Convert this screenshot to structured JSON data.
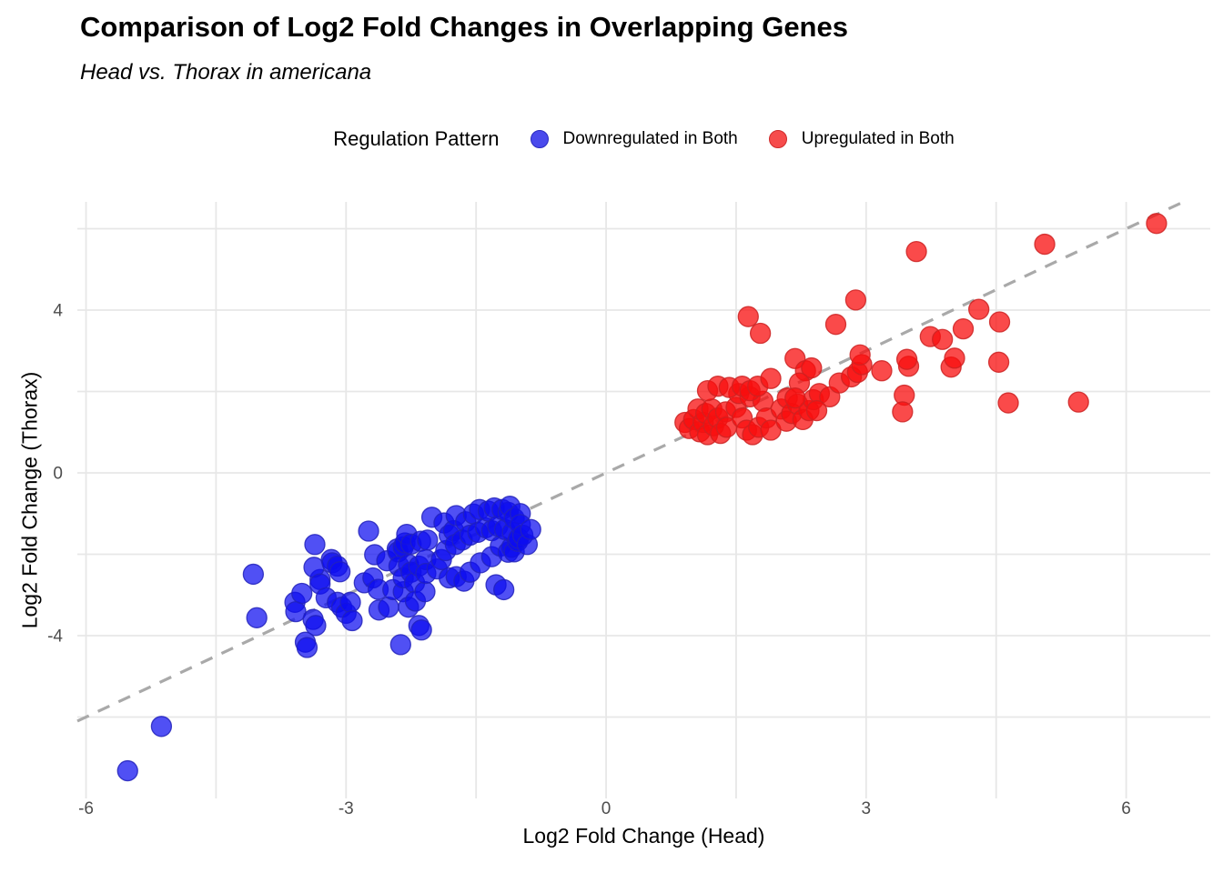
{
  "title": "Comparison of Log2 Fold Changes in Overlapping Genes",
  "subtitle": "Head vs. Thorax in americana",
  "legend": {
    "title": "Regulation Pattern",
    "items": [
      {
        "label": "Downregulated in Both",
        "color": "#4a4aec",
        "border": "#2a2ac0"
      },
      {
        "label": "Upregulated in Both",
        "color": "#f64c4c",
        "border": "#cf2b2b"
      }
    ]
  },
  "chart_data": {
    "type": "scatter",
    "title": "Comparison of Log2 Fold Changes in Overlapping Genes",
    "subtitle": "Head vs. Thorax in americana",
    "xlabel": "Log2 Fold Change (Head)",
    "ylabel": "Log2 Fold Change (Thorax)",
    "xlim": [
      -6.1,
      6.97
    ],
    "ylim": [
      -8.0,
      6.66
    ],
    "x_ticks": [
      -6,
      -3,
      0,
      3,
      6
    ],
    "y_ticks": [
      -4,
      0,
      4
    ],
    "x_minor": [
      -4.5,
      -1.5,
      1.5,
      4.5
    ],
    "y_minor": [
      -6,
      -2,
      2,
      6
    ],
    "grid": true,
    "grid_color": "#e7e7e7",
    "tick_label_color": "#4d4d4d",
    "identity_line": {
      "style": "dashed",
      "color": "#a9a9a9",
      "from": -6.1,
      "to": 6.66
    },
    "point_radius": 11,
    "legend_position": "top-center",
    "series": [
      {
        "name": "Downregulated in Both",
        "fill": "#0d0df0",
        "fill_opacity": 0.72,
        "stroke": "#2222bb",
        "points": [
          [
            -5.52,
            -7.32
          ],
          [
            -5.13,
            -6.23
          ],
          [
            -4.07,
            -2.49
          ],
          [
            -4.03,
            -3.56
          ],
          [
            -3.59,
            -3.18
          ],
          [
            -3.58,
            -3.41
          ],
          [
            -3.51,
            -2.96
          ],
          [
            -3.47,
            -4.16
          ],
          [
            -3.45,
            -4.29
          ],
          [
            -3.38,
            -3.6
          ],
          [
            -3.35,
            -3.75
          ],
          [
            -3.36,
            -1.76
          ],
          [
            -3.3,
            -2.62
          ],
          [
            -3.37,
            -2.32
          ],
          [
            -3.3,
            -2.73
          ],
          [
            -3.23,
            -3.07
          ],
          [
            -3.17,
            -2.13
          ],
          [
            -3.16,
            -2.21
          ],
          [
            -3.1,
            -2.29
          ],
          [
            -3.1,
            -3.18
          ],
          [
            -3.07,
            -2.43
          ],
          [
            -3.05,
            -3.3
          ],
          [
            -3.0,
            -3.45
          ],
          [
            -2.95,
            -3.18
          ],
          [
            -2.93,
            -3.63
          ],
          [
            -2.79,
            -2.7
          ],
          [
            -2.74,
            -1.43
          ],
          [
            -2.69,
            -2.58
          ],
          [
            -2.67,
            -2.01
          ],
          [
            -2.63,
            -2.86
          ],
          [
            -2.62,
            -3.37
          ],
          [
            -2.53,
            -2.16
          ],
          [
            -2.51,
            -3.3
          ],
          [
            -2.46,
            -2.87
          ],
          [
            -2.41,
            -1.87
          ],
          [
            -2.4,
            -1.94
          ],
          [
            -2.39,
            -2.29
          ],
          [
            -2.37,
            -4.22
          ],
          [
            -2.34,
            -1.82
          ],
          [
            -2.34,
            -2.92
          ],
          [
            -2.34,
            -2.58
          ],
          [
            -2.32,
            -1.72
          ],
          [
            -2.3,
            -1.51
          ],
          [
            -2.28,
            -2.25
          ],
          [
            -2.28,
            -3.3
          ],
          [
            -2.25,
            -1.75
          ],
          [
            -2.25,
            -2.44
          ],
          [
            -2.21,
            -2.7
          ],
          [
            -2.2,
            -3.15
          ],
          [
            -2.16,
            -2.29
          ],
          [
            -2.16,
            -3.75
          ],
          [
            -2.14,
            -1.68
          ],
          [
            -2.13,
            -3.86
          ],
          [
            -2.09,
            -2.92
          ],
          [
            -2.08,
            -2.13
          ],
          [
            -2.08,
            -2.47
          ],
          [
            -2.06,
            -1.65
          ],
          [
            -2.01,
            -1.09
          ],
          [
            -1.95,
            -2.36
          ],
          [
            -1.9,
            -2.13
          ],
          [
            -1.87,
            -1.23
          ],
          [
            -1.85,
            -1.91
          ],
          [
            -1.81,
            -1.53
          ],
          [
            -1.81,
            -2.58
          ],
          [
            -1.76,
            -1.42
          ],
          [
            -1.74,
            -1.76
          ],
          [
            -1.73,
            -1.05
          ],
          [
            -1.73,
            -2.55
          ],
          [
            -1.66,
            -1.65
          ],
          [
            -1.64,
            -2.66
          ],
          [
            -1.62,
            -1.2
          ],
          [
            -1.57,
            -1.53
          ],
          [
            -1.57,
            -2.44
          ],
          [
            -1.53,
            -1.01
          ],
          [
            -1.48,
            -1.46
          ],
          [
            -1.46,
            -0.9
          ],
          [
            -1.45,
            -2.21
          ],
          [
            -1.39,
            -1.35
          ],
          [
            -1.36,
            -0.94
          ],
          [
            -1.32,
            -1.42
          ],
          [
            -1.32,
            -2.06
          ],
          [
            -1.29,
            -0.86
          ],
          [
            -1.27,
            -2.75
          ],
          [
            -1.25,
            -1.31
          ],
          [
            -1.22,
            -1.8
          ],
          [
            -1.2,
            -0.9
          ],
          [
            -1.18,
            -2.87
          ],
          [
            -1.17,
            -1.39
          ],
          [
            -1.13,
            -0.97
          ],
          [
            -1.13,
            -1.95
          ],
          [
            -1.11,
            -0.82
          ],
          [
            -1.09,
            -1.83
          ],
          [
            -1.08,
            -1.46
          ],
          [
            -1.06,
            -1.12
          ],
          [
            -1.06,
            -1.94
          ],
          [
            -1.02,
            -1.68
          ],
          [
            -1.01,
            -1.61
          ],
          [
            -0.99,
            -1.0
          ],
          [
            -0.99,
            -1.27
          ],
          [
            -0.96,
            -1.53
          ],
          [
            -0.91,
            -1.76
          ],
          [
            -0.87,
            -1.39
          ]
        ]
      },
      {
        "name": "Upregulated in Both",
        "fill": "#f80d0d",
        "fill_opacity": 0.75,
        "stroke": "#cc2222",
        "points": [
          [
            0.91,
            1.24
          ],
          [
            0.96,
            1.09
          ],
          [
            1.01,
            1.31
          ],
          [
            1.06,
            1.57
          ],
          [
            1.08,
            1.01
          ],
          [
            1.12,
            1.24
          ],
          [
            1.15,
            1.46
          ],
          [
            1.17,
            0.94
          ],
          [
            1.22,
            1.57
          ],
          [
            1.24,
            1.16
          ],
          [
            1.29,
            1.35
          ],
          [
            1.32,
            0.97
          ],
          [
            1.38,
            1.5
          ],
          [
            1.39,
            1.12
          ],
          [
            1.5,
            1.61
          ],
          [
            1.53,
            1.95
          ],
          [
            1.57,
            1.35
          ],
          [
            1.62,
            1.05
          ],
          [
            1.66,
            1.87
          ],
          [
            1.69,
            0.94
          ],
          [
            1.76,
            1.12
          ],
          [
            1.81,
            1.76
          ],
          [
            1.85,
            1.35
          ],
          [
            1.9,
            1.05
          ],
          [
            2.02,
            1.57
          ],
          [
            2.08,
            1.27
          ],
          [
            2.09,
            1.84
          ],
          [
            2.14,
            1.46
          ],
          [
            2.21,
            1.69
          ],
          [
            2.27,
            1.31
          ],
          [
            2.34,
            1.53
          ],
          [
            2.39,
            1.8
          ],
          [
            1.17,
            2.02
          ],
          [
            1.29,
            2.13
          ],
          [
            1.42,
            2.1
          ],
          [
            1.57,
            2.13
          ],
          [
            1.66,
            2.02
          ],
          [
            1.75,
            2.13
          ],
          [
            1.9,
            2.32
          ],
          [
            2.18,
            2.81
          ],
          [
            2.3,
            2.51
          ],
          [
            2.37,
            2.58
          ],
          [
            2.23,
            2.21
          ],
          [
            2.18,
            1.84
          ],
          [
            2.46,
            1.95
          ],
          [
            2.58,
            1.87
          ],
          [
            2.43,
            1.53
          ],
          [
            2.69,
            2.21
          ],
          [
            2.83,
            2.36
          ],
          [
            2.9,
            2.47
          ],
          [
            2.95,
            2.66
          ],
          [
            2.93,
            2.9
          ],
          [
            3.18,
            2.51
          ],
          [
            3.49,
            2.62
          ],
          [
            3.47,
            2.79
          ],
          [
            3.44,
            1.91
          ],
          [
            3.42,
            1.5
          ],
          [
            3.98,
            2.6
          ],
          [
            4.02,
            2.82
          ],
          [
            1.64,
            3.84
          ],
          [
            1.78,
            3.43
          ],
          [
            2.65,
            3.65
          ],
          [
            2.88,
            4.25
          ],
          [
            3.58,
            5.44
          ],
          [
            3.74,
            3.35
          ],
          [
            3.88,
            3.28
          ],
          [
            4.12,
            3.54
          ],
          [
            4.3,
            4.02
          ],
          [
            4.54,
            3.71
          ],
          [
            4.53,
            2.72
          ],
          [
            4.64,
            1.72
          ],
          [
            5.06,
            5.62
          ],
          [
            5.45,
            1.74
          ],
          [
            6.35,
            6.13
          ]
        ]
      }
    ]
  }
}
